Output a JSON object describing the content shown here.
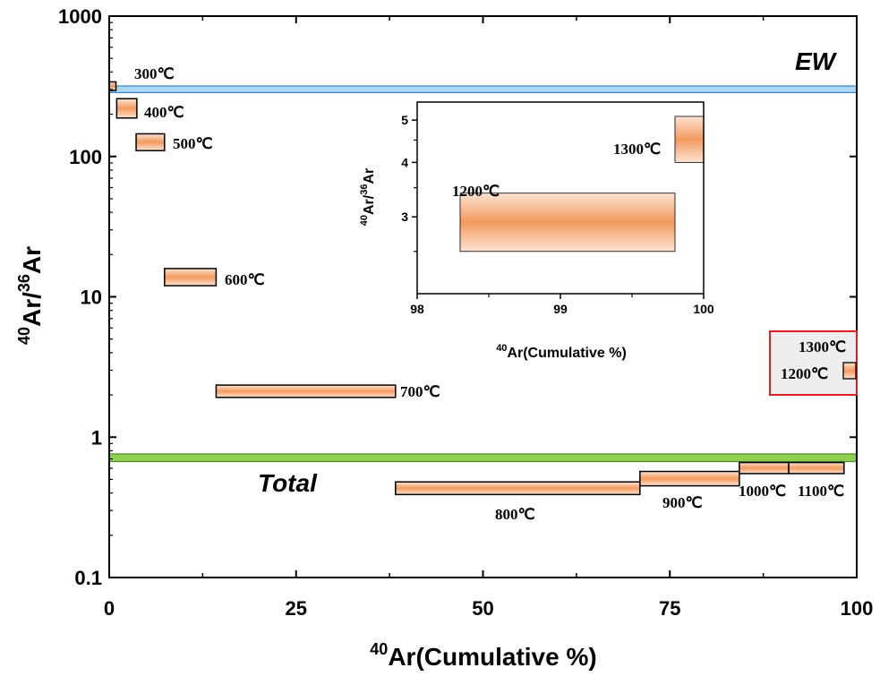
{
  "chart_data": {
    "type": "step-spectrum",
    "xlabel_sup": "40",
    "xlabel": "Ar(Cumulative %)",
    "ylabel_sup1": "40",
    "ylabel_mid": "Ar/",
    "ylabel_sup2": "36",
    "ylabel_end": "Ar",
    "xlim": [
      0,
      100
    ],
    "ylim": [
      0.1,
      1000
    ],
    "yscale": "log",
    "x_ticks": [
      "0",
      "25",
      "50",
      "75",
      "100"
    ],
    "y_ticks": [
      "0.1",
      "1",
      "10",
      "100",
      "1000"
    ],
    "steps": [
      {
        "label": "300℃",
        "x0": 0.0,
        "x1": 0.9,
        "y_low": 295,
        "y_high": 340
      },
      {
        "label": "400℃",
        "x0": 1.0,
        "x1": 3.7,
        "y_low": 188,
        "y_high": 258
      },
      {
        "label": "500℃",
        "x0": 3.6,
        "x1": 7.4,
        "y_low": 110,
        "y_high": 145
      },
      {
        "label": "600℃",
        "x0": 7.4,
        "x1": 14.3,
        "y_low": 12.0,
        "y_high": 15.9
      },
      {
        "label": "700℃",
        "x0": 14.3,
        "x1": 38.3,
        "y_low": 1.92,
        "y_high": 2.35
      },
      {
        "label": "800℃",
        "x0": 38.3,
        "x1": 71.0,
        "y_low": 0.39,
        "y_high": 0.48
      },
      {
        "label": "900℃",
        "x0": 71.0,
        "x1": 84.3,
        "y_low": 0.45,
        "y_high": 0.57
      },
      {
        "label": "1000℃",
        "x0": 84.3,
        "x1": 90.9,
        "y_low": 0.55,
        "y_high": 0.66
      },
      {
        "label": "1100℃",
        "x0": 90.9,
        "x1": 98.3,
        "y_low": 0.55,
        "y_high": 0.66
      },
      {
        "label": "1200℃",
        "x0": 98.3,
        "x1": 99.8,
        "y_low": 2.5,
        "y_high": 3.4
      },
      {
        "label": "1300℃",
        "x0": 99.8,
        "x1": 100.0,
        "y_low": 4.0,
        "y_high": 5.1
      }
    ],
    "reference_bands": [
      {
        "label": "EW",
        "y_low": 285,
        "y_high": 318,
        "color": "#a8d8f4",
        "edge": "#3a7fc1"
      },
      {
        "label": "Total",
        "y_low": 0.67,
        "y_high": 0.76,
        "color": "#8fd14f",
        "edge": "#4c8a2a"
      }
    ],
    "inset": {
      "xlabel_sup": "40",
      "xlabel": "Ar(Cumulative %)",
      "ylabel_sup1": "40",
      "ylabel_mid": "Ar/",
      "ylabel_sup2": "36",
      "ylabel_end": "Ar",
      "xlim": [
        98,
        100
      ],
      "ylim": [
        2.0,
        5.5
      ],
      "yscale": "log",
      "x_ticks": [
        "98",
        "99",
        "100"
      ],
      "y_ticks": [
        "3",
        "4",
        "5"
      ],
      "labels": {
        "s1200": "1200℃",
        "s1300": "1300℃"
      }
    },
    "colors": {
      "fill_center": "#f39a5e",
      "fill_edge": "#fde3d2",
      "highlight_box": "#e02020"
    }
  }
}
